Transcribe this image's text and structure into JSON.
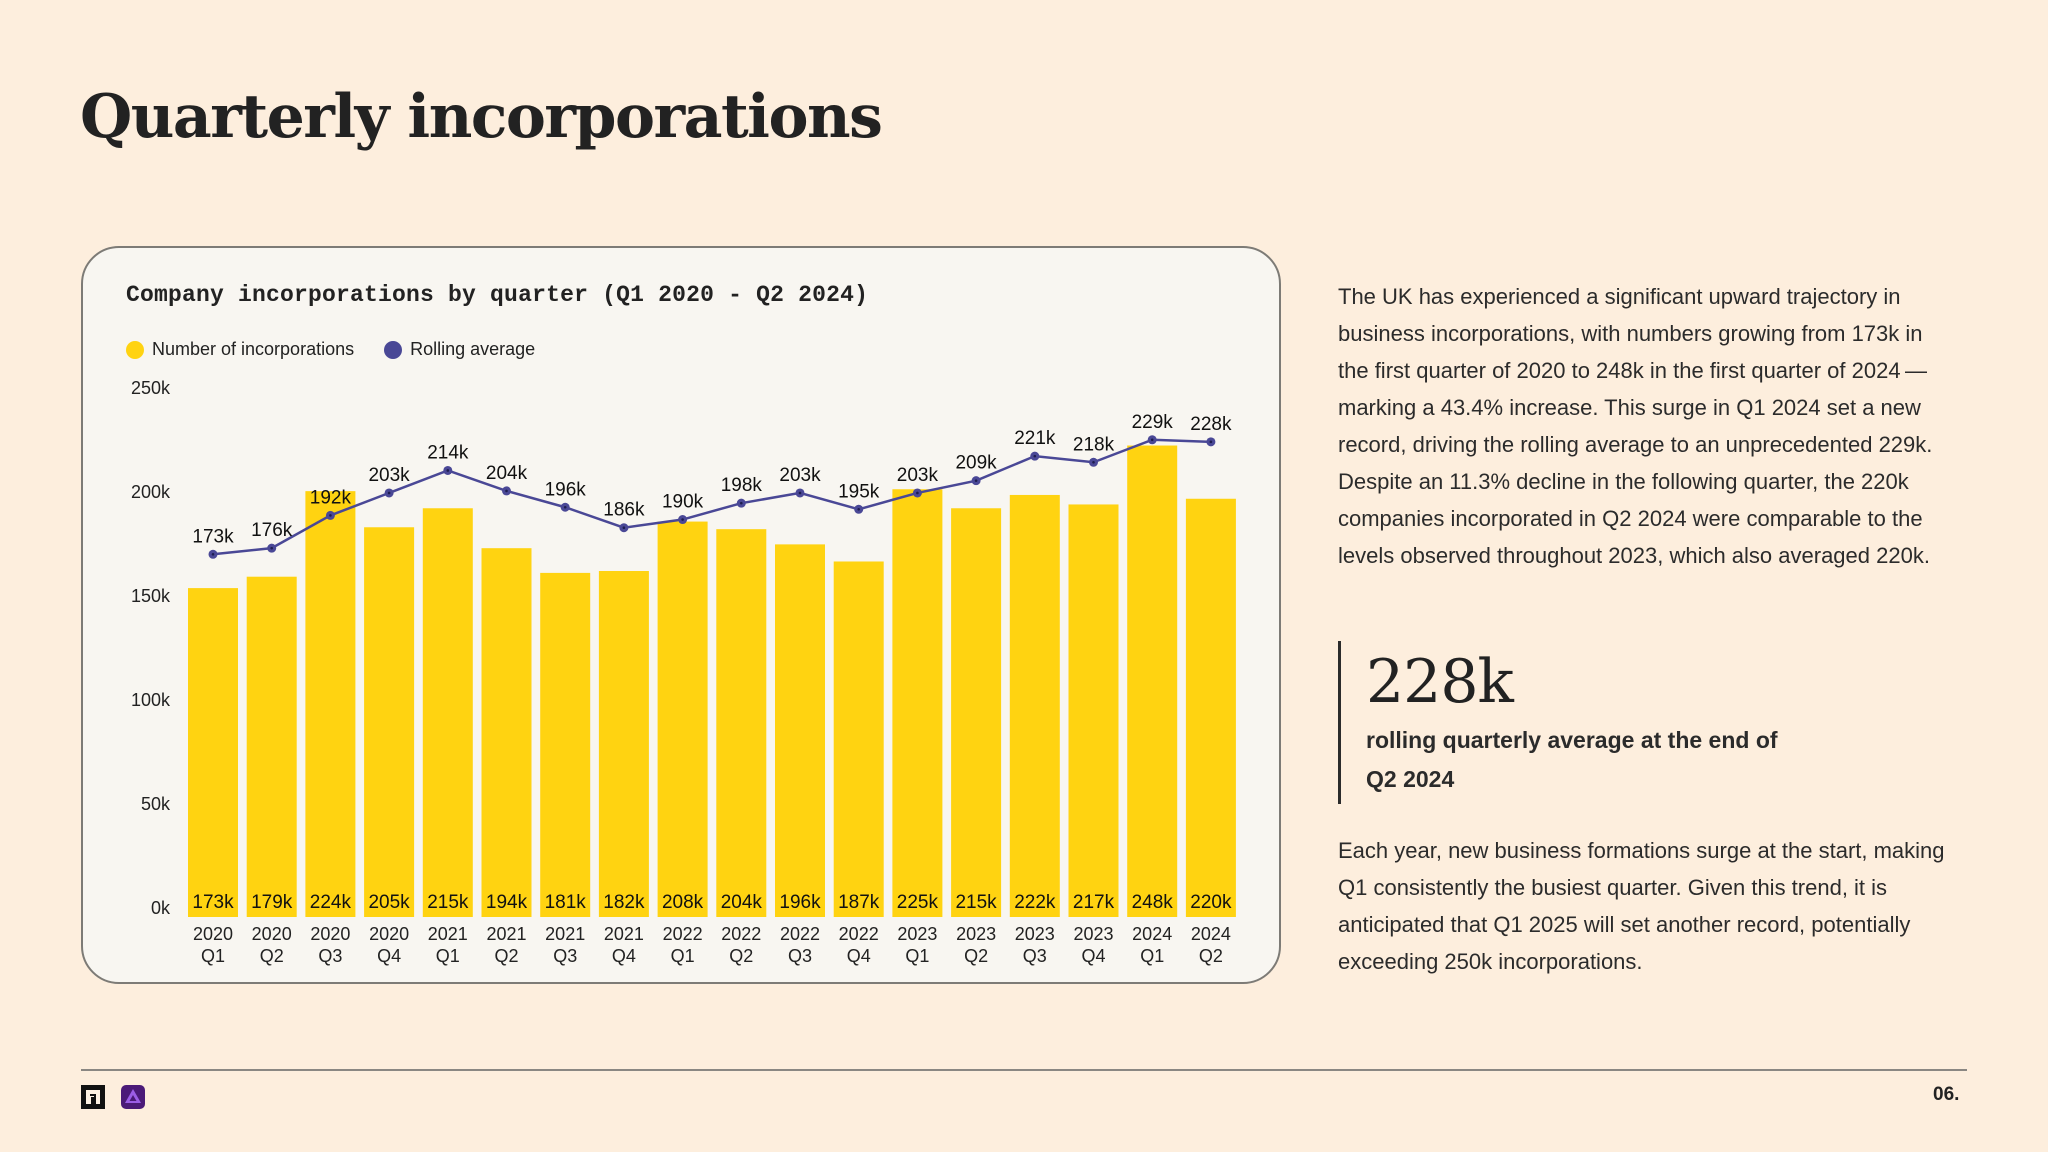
{
  "page": {
    "title": "Quarterly incorporations",
    "page_number": "06."
  },
  "colors": {
    "background": "#fdeedd",
    "card": "#f8f6f1",
    "bar": "#ffd311",
    "line": "#4a4896",
    "text": "#222222"
  },
  "icons": {
    "logo_left": "building-logo-icon",
    "logo_right": "purple-triangle-logo-icon"
  },
  "chart_data": {
    "type": "bar",
    "title": "Company incorporations by quarter (Q1 2020 - Q2 2024)",
    "xlabel": "",
    "ylabel": "",
    "ylim": [
      0,
      250
    ],
    "y_unit": "k",
    "y_ticks": [
      "0k",
      "50k",
      "100k",
      "150k",
      "200k",
      "250k"
    ],
    "grid": false,
    "legend_position": "top-left",
    "legend": [
      {
        "label": "Number of incorporations",
        "color": "#ffd311"
      },
      {
        "label": "Rolling average",
        "color": "#4a4896"
      }
    ],
    "categories": [
      [
        "2020",
        "Q1"
      ],
      [
        "2020",
        "Q2"
      ],
      [
        "2020",
        "Q3"
      ],
      [
        "2020",
        "Q4"
      ],
      [
        "2021",
        "Q1"
      ],
      [
        "2021",
        "Q2"
      ],
      [
        "2021",
        "Q3"
      ],
      [
        "2021",
        "Q4"
      ],
      [
        "2022",
        "Q1"
      ],
      [
        "2022",
        "Q2"
      ],
      [
        "2022",
        "Q3"
      ],
      [
        "2022",
        "Q4"
      ],
      [
        "2023",
        "Q1"
      ],
      [
        "2023",
        "Q2"
      ],
      [
        "2023",
        "Q3"
      ],
      [
        "2023",
        "Q4"
      ],
      [
        "2024",
        "Q1"
      ],
      [
        "2024",
        "Q2"
      ]
    ],
    "series": [
      {
        "name": "Number of incorporations",
        "type": "bar",
        "values": [
          173,
          179,
          224,
          205,
          215,
          194,
          181,
          182,
          208,
          204,
          196,
          187,
          225,
          215,
          222,
          217,
          248,
          220
        ],
        "labels": [
          "173k",
          "179k",
          "224k",
          "205k",
          "215k",
          "194k",
          "181k",
          "182k",
          "208k",
          "204k",
          "196k",
          "187k",
          "225k",
          "215k",
          "222k",
          "217k",
          "248k",
          "220k"
        ]
      },
      {
        "name": "Rolling average",
        "type": "line",
        "values": [
          173,
          176,
          192,
          203,
          214,
          204,
          196,
          186,
          190,
          198,
          203,
          195,
          203,
          209,
          221,
          218,
          229,
          228
        ],
        "labels": [
          "173k",
          "176k",
          "192k",
          "203k",
          "214k",
          "204k",
          "196k",
          "186k",
          "190k",
          "198k",
          "203k",
          "195k",
          "203k",
          "209k",
          "221k",
          "218k",
          "229k",
          "228k"
        ]
      }
    ]
  },
  "sidebar": {
    "paragraph1": "The UK has experienced a significant upward trajectory in business incorporations, with numbers growing from 173k in the first quarter of 2020 to 248k in the first quarter of 2024 — marking a 43.4% increase. This surge in Q1 2024 set a new record, driving the rolling average to an unprecedented 229k. Despite an 11.3% decline in the following quarter, the 220k companies incorporated in Q2 2024 were comparable to the levels observed throughout 2023, which also averaged 220k.",
    "stat_value": "228k",
    "stat_label": "rolling quarterly average at the end of Q2 2024",
    "paragraph2": "Each year, new business formations surge at the start, making Q1 consistently the busiest quarter. Given this trend, it is anticipated that Q1 2025 will set another record, potentially exceeding 250k incorporations."
  }
}
